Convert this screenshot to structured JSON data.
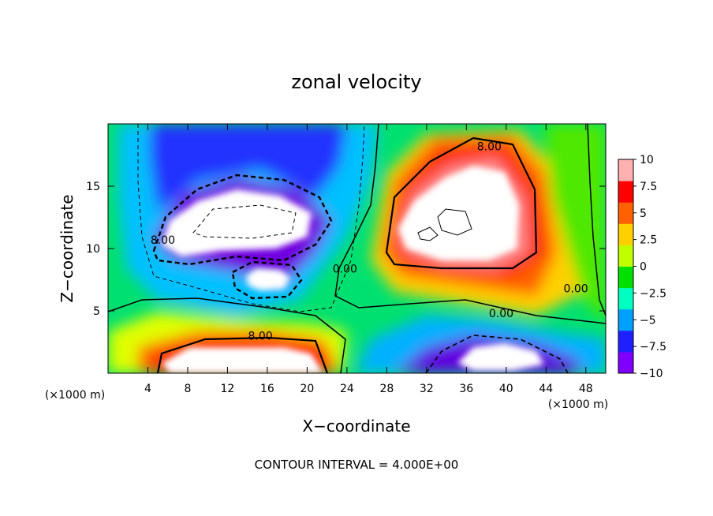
{
  "chart_data": {
    "type": "heatmap",
    "title": "zonal velocity",
    "xlabel": "X−coordinate",
    "ylabel": "Z−coordinate",
    "x_unit_left": "(×1000 m)",
    "x_unit_right": "(×1000 m)",
    "xlim": [
      0,
      50
    ],
    "ylim": [
      0,
      20
    ],
    "x_ticks": [
      4,
      8,
      12,
      16,
      20,
      24,
      28,
      32,
      36,
      40,
      44,
      48
    ],
    "y_ticks": [
      5,
      10,
      15
    ],
    "colorbar": {
      "range": [
        -10,
        10
      ],
      "labels": [
        "10",
        "7.5",
        "5",
        "2.5",
        "0",
        "−2.5",
        "−5",
        "−7.5",
        "−10"
      ]
    },
    "contour_labels": [
      {
        "text": "8.00",
        "x": 38.3,
        "y": 18.2
      },
      {
        "text": "8.00",
        "x": 5.5,
        "y": 10.7
      },
      {
        "text": "8.00",
        "x": 15.3,
        "y": 3.0
      },
      {
        "text": "0.00",
        "x": 23.8,
        "y": 8.4
      },
      {
        "text": "0.00",
        "x": 39.5,
        "y": 4.8
      },
      {
        "text": "0.00",
        "x": 47.0,
        "y": 6.8
      }
    ],
    "contour_interval_text": "CONTOUR INTERVAL = 4.000E+00",
    "palette": [
      "#8000ff",
      "#2020ff",
      "#00a0ff",
      "#00ffc0",
      "#00e000",
      "#c0ff00",
      "#ffd000",
      "#ff6000",
      "#ff0000",
      "#ffb0b0"
    ]
  }
}
